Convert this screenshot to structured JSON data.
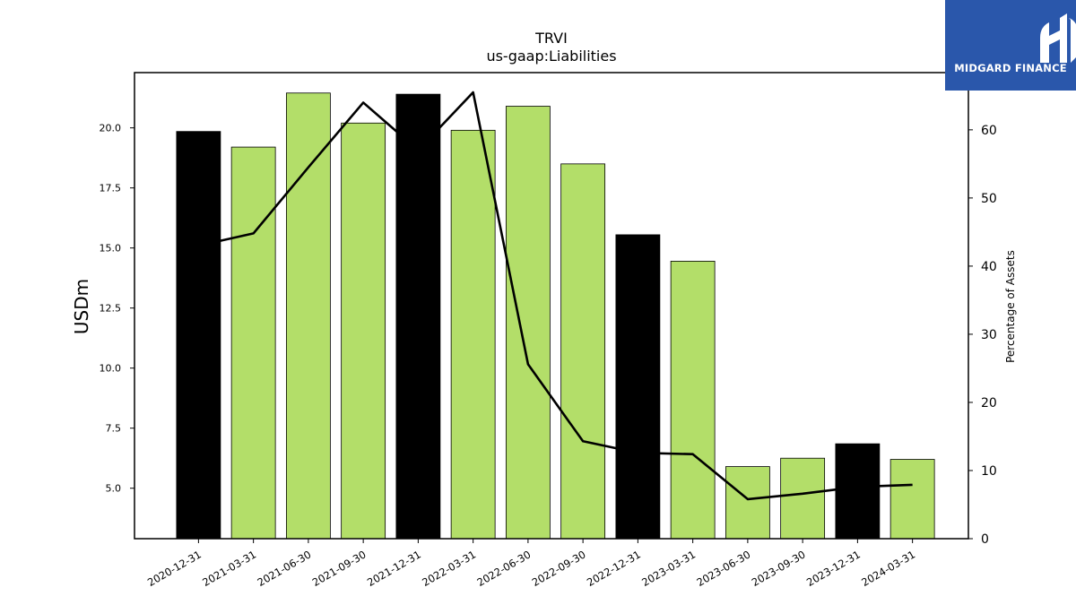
{
  "chart_data": {
    "type": "bar",
    "title": "TRVI",
    "subtitle": "us-gaap:Liabilities",
    "ylabel": "USDm",
    "ylabel_right": "Percentage of Assets",
    "categories": [
      "2020-12-31",
      "2021-03-31",
      "2021-06-30",
      "2021-09-30",
      "2021-12-31",
      "2022-03-31",
      "2022-06-30",
      "2022-09-30",
      "2022-12-31",
      "2023-03-31",
      "2023-06-30",
      "2023-09-30",
      "2023-12-31",
      "2024-03-31"
    ],
    "series": [
      {
        "type": "bar",
        "values": [
          19.85,
          19.2,
          21.45,
          20.2,
          21.4,
          19.9,
          20.9,
          18.5,
          15.55,
          14.45,
          5.9,
          6.25,
          6.85,
          6.2
        ],
        "highlight": [
          true,
          false,
          false,
          false,
          true,
          false,
          false,
          false,
          true,
          false,
          false,
          false,
          true,
          false
        ]
      },
      {
        "type": "line",
        "axis": "right",
        "values": [
          43,
          44.8,
          54.5,
          64,
          57,
          65.5,
          25.6,
          14.3,
          12.6,
          12.4,
          5.8,
          6.6,
          7.6,
          7.9
        ]
      }
    ],
    "ylim": [
      2.9,
      22.3
    ],
    "ylim_right": [
      0,
      68.4
    ],
    "yticks": [
      "5.0",
      "7.5",
      "10.0",
      "12.5",
      "15.0",
      "17.5",
      "20.0"
    ],
    "yticks_right": [
      "0",
      "10",
      "20",
      "30",
      "40",
      "50",
      "60"
    ],
    "colors": {
      "bar": "#b3de69",
      "highlight": "#000000",
      "line": "#000000"
    }
  },
  "logo": {
    "text": "MIDGARD FINANCE",
    "color": "#2a57ab"
  }
}
